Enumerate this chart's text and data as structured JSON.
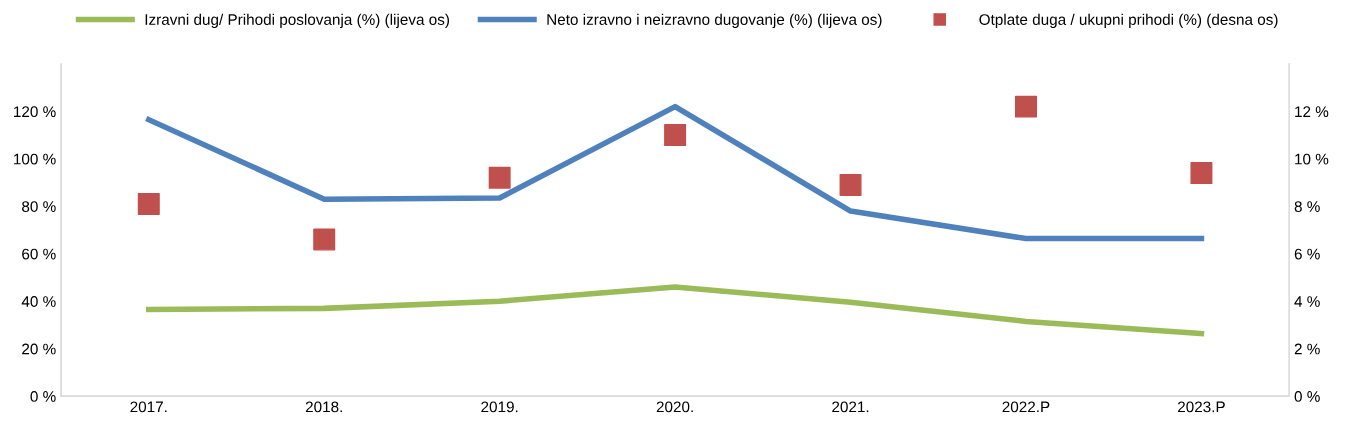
{
  "chart_data": {
    "type": "line",
    "categories": [
      "2017.",
      "2018.",
      "2019.",
      "2020.",
      "2021.",
      "2022.P",
      "2023.P"
    ],
    "series": [
      {
        "name": "Izravni dug/ Prihodi poslovanja (%) (lijeva os)",
        "color": "#9bbb59",
        "values": [
          36.5,
          37,
          40,
          46,
          39.6,
          31.5,
          26.4
        ]
      },
      {
        "name": "Neto izravno i neizravno dugovanje (%) (lijeva os)",
        "color": "#4f81bd",
        "values": [
          116.5,
          83,
          83.5,
          122,
          78,
          66.4,
          66.4
        ]
      },
      {
        "name": "Otplate duga / ukupni prihodi (%) (desna os)",
        "color": "#c0504d",
        "type": "scatter",
        "axis": "y2",
        "marker": "square",
        "values": [
          8.1,
          6.6,
          9.2,
          11.0,
          8.9,
          12.2,
          9.4
        ]
      }
    ],
    "ylim": [
      0,
      140
    ],
    "yticks": [
      {
        "value": 0,
        "label": "0 %"
      },
      {
        "value": 20,
        "label": "20 %"
      },
      {
        "value": 40,
        "label": "40 %"
      },
      {
        "value": 60,
        "label": "60 %"
      },
      {
        "value": 80,
        "label": "80 %"
      },
      {
        "value": 100,
        "label": "100 %"
      },
      {
        "value": 120,
        "label": "120 %"
      }
    ],
    "y2lim": [
      0,
      14
    ],
    "y2ticks": [
      {
        "value": 0,
        "label": "0 %"
      },
      {
        "value": 2,
        "label": "2 %"
      },
      {
        "value": 4,
        "label": "4 %"
      },
      {
        "value": 6,
        "label": "6 %"
      },
      {
        "value": 8,
        "label": "8 %"
      },
      {
        "value": 10,
        "label": "10 %"
      },
      {
        "value": 12,
        "label": "12 %"
      }
    ],
    "grid": false,
    "legend": "top",
    "line_style": "solid"
  }
}
